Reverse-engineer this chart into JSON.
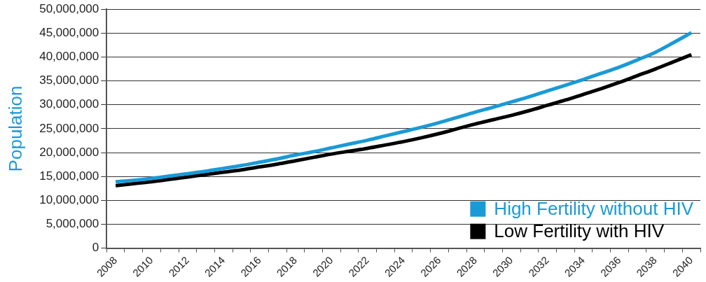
{
  "chart_data": {
    "type": "line",
    "ylabel": "Population",
    "categories": [
      "2008",
      null,
      "2010",
      null,
      "2012",
      null,
      "2014",
      null,
      "2016",
      null,
      "2018",
      null,
      "2020",
      null,
      "2022",
      null,
      "2024",
      null,
      "2026",
      null,
      "2028",
      null,
      "2030",
      null,
      "2032",
      null,
      "2034",
      null,
      "2036",
      null,
      "2038",
      null,
      "2040"
    ],
    "series": [
      {
        "name": "High Fertility without HIV",
        "color": "#1a9ad6",
        "values": [
          13900000,
          14200000,
          14600000,
          15100000,
          15600000,
          16100000,
          16700000,
          17300000,
          18000000,
          18700000,
          19500000,
          20200000,
          21000000,
          21800000,
          22600000,
          23500000,
          24400000,
          25300000,
          26300000,
          27400000,
          28500000,
          29500000,
          30600000,
          31700000,
          32900000,
          34100000,
          35300000,
          36600000,
          37900000,
          39400000,
          41000000,
          43000000,
          45100000
        ]
      },
      {
        "name": "Low Fertility with HIV",
        "color": "#000000",
        "values": [
          13100000,
          13500000,
          13900000,
          14400000,
          14900000,
          15400000,
          15900000,
          16400000,
          17000000,
          17600000,
          18300000,
          19000000,
          19700000,
          20300000,
          20900000,
          21600000,
          22300000,
          23100000,
          24000000,
          25000000,
          26000000,
          26900000,
          27800000,
          28800000,
          29900000,
          31000000,
          32200000,
          33400000,
          34700000,
          36100000,
          37500000,
          39000000,
          40500000
        ]
      }
    ],
    "ylim": [
      0,
      50000000
    ],
    "yticks": [
      0,
      {
        "value": 5000000,
        "label": "5,000,000"
      },
      {
        "value": 10000000,
        "label": "10,000,000"
      },
      {
        "value": 15000000,
        "label": "15,000,000"
      },
      {
        "value": 20000000,
        "label": "20,000,000"
      },
      {
        "value": 25000000,
        "label": "25,000,000"
      },
      {
        "value": 30000000,
        "label": "30,000,000"
      },
      {
        "value": 35000000,
        "label": "35,000,000"
      },
      {
        "value": 40000000,
        "label": "40,000,000"
      },
      {
        "value": 45000000,
        "label": "45,000,000"
      },
      {
        "value": 50000000,
        "label": "50,000,000"
      }
    ],
    "grid": "y",
    "legend": "bottom right",
    "marker": "none",
    "line_style": "solid"
  }
}
